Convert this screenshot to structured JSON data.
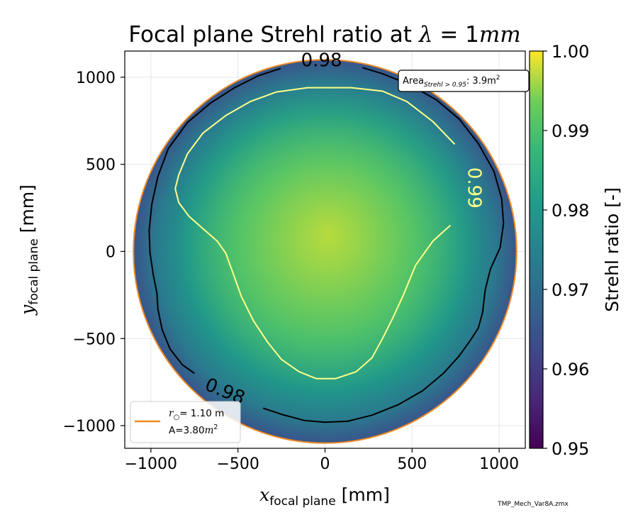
{
  "chart_data": {
    "type": "heatmap",
    "title": "Focal plane Strehl ratio at λ = 1mm",
    "title_main": "Focal plane Strehl ratio at ",
    "title_lambda": "λ",
    "title_eq": " = 1",
    "title_unit": "mm",
    "xlabel_sym": "x",
    "xlabel_sub": "focal plane",
    "xlabel_unit": "[mm]",
    "ylabel_sym": "y",
    "ylabel_sub": "focal plane",
    "ylabel_unit": "[mm]",
    "xlim": [
      -1150,
      1150
    ],
    "ylim": [
      -1130,
      1150
    ],
    "xticks": [
      -1000,
      -500,
      0,
      500,
      1000
    ],
    "yticks": [
      -1000,
      -500,
      0,
      500,
      1000
    ],
    "xtick_labels": [
      "−1000",
      "−500",
      "0",
      "500",
      "1000"
    ],
    "ytick_labels": [
      "−1000",
      "−500",
      "0",
      "500",
      "1000"
    ],
    "grid": true,
    "colormap": "viridis",
    "colorbar": {
      "label": "Strehl ratio [-]",
      "range": [
        0.95,
        1.0
      ],
      "ticks": [
        0.95,
        0.96,
        0.97,
        0.98,
        0.99,
        1.0
      ],
      "tick_labels": [
        "0.95",
        "0.96",
        "0.97",
        "0.98",
        "0.99",
        "1.00"
      ]
    },
    "field": {
      "peak_value": 0.997,
      "peak_center": [
        20,
        100
      ],
      "edge_value": 0.965,
      "field_radius_mm": 1100
    },
    "contours": [
      {
        "level": 0.98,
        "color": "#000000",
        "labels": [
          {
            "text": "0.98",
            "x": -20,
            "y": 1095,
            "rotation": 0
          },
          {
            "text": "0.98",
            "x": -575,
            "y": -805,
            "rotation": 22
          }
        ],
        "paths": [
          [
            [
              -255,
              1050
            ],
            [
              -380,
              1010
            ],
            [
              -520,
              940
            ],
            [
              -660,
              850
            ],
            [
              -790,
              740
            ],
            [
              -900,
              590
            ],
            [
              -960,
              430
            ],
            [
              -995,
              270
            ],
            [
              -1010,
              120
            ],
            [
              -1005,
              -10
            ],
            [
              -985,
              -140
            ],
            [
              -965,
              -240
            ],
            [
              -960,
              -330
            ],
            [
              -935,
              -450
            ],
            [
              -890,
              -560
            ],
            [
              -820,
              -650
            ],
            [
              -750,
              -700
            ]
          ],
          [
            [
              -355,
              -900
            ],
            [
              -250,
              -935
            ],
            [
              -120,
              -970
            ],
            [
              0,
              -980
            ],
            [
              130,
              -975
            ],
            [
              270,
              -940
            ],
            [
              420,
              -880
            ],
            [
              560,
              -800
            ],
            [
              680,
              -700
            ],
            [
              770,
              -600
            ],
            [
              835,
              -510
            ],
            [
              880,
              -440
            ],
            [
              905,
              -350
            ],
            [
              920,
              -220
            ],
            [
              950,
              -100
            ],
            [
              1005,
              20
            ],
            [
              1025,
              160
            ],
            [
              1015,
              300
            ],
            [
              970,
              460
            ],
            [
              880,
              620
            ],
            [
              770,
              760
            ],
            [
              640,
              870
            ],
            [
              480,
              960
            ],
            [
              330,
              1020
            ],
            [
              215,
              1055
            ]
          ]
        ]
      },
      {
        "level": 0.99,
        "color": "#ffff88",
        "labels": [
          {
            "text": "0.99",
            "x": 855,
            "y": 365,
            "rotation": 90
          }
        ],
        "paths": [
          [
            [
              745,
              615
            ],
            [
              620,
              745
            ],
            [
              470,
              860
            ],
            [
              330,
              920
            ],
            [
              150,
              940
            ],
            [
              -100,
              940
            ],
            [
              -280,
              915
            ],
            [
              -430,
              860
            ],
            [
              -570,
              780
            ],
            [
              -700,
              680
            ],
            [
              -790,
              560
            ],
            [
              -840,
              440
            ],
            [
              -860,
              360
            ],
            [
              -840,
              280
            ],
            [
              -780,
              200
            ],
            [
              -700,
              130
            ],
            [
              -620,
              60
            ],
            [
              -570,
              -10
            ],
            [
              -530,
              -120
            ],
            [
              -480,
              -260
            ],
            [
              -410,
              -400
            ],
            [
              -330,
              -520
            ],
            [
              -250,
              -620
            ],
            [
              -150,
              -690
            ],
            [
              -50,
              -730
            ],
            [
              60,
              -730
            ],
            [
              180,
              -690
            ],
            [
              270,
              -610
            ],
            [
              330,
              -500
            ],
            [
              390,
              -380
            ],
            [
              450,
              -250
            ],
            [
              520,
              -80
            ],
            [
              620,
              60
            ],
            [
              720,
              150
            ]
          ]
        ]
      }
    ],
    "circle": {
      "radius_mm": 1100,
      "color": "#f08a24",
      "legend_line1_sym": "r",
      "legend_line1_sub": "○",
      "legend_line1_rest": "= 1.10 m",
      "legend_line2_pre": "A=3.80",
      "legend_line2_unit": "m",
      "legend_line2_exp": "2",
      "legend_location": "lower-left"
    },
    "annotation": {
      "pre": "Area",
      "sub": "Strehl > 0.95",
      "post": ": 3.9m",
      "exp": "2",
      "location": "top-right"
    }
  },
  "footer": {
    "filename": "TMP_Mech_Var8A.zmx"
  }
}
